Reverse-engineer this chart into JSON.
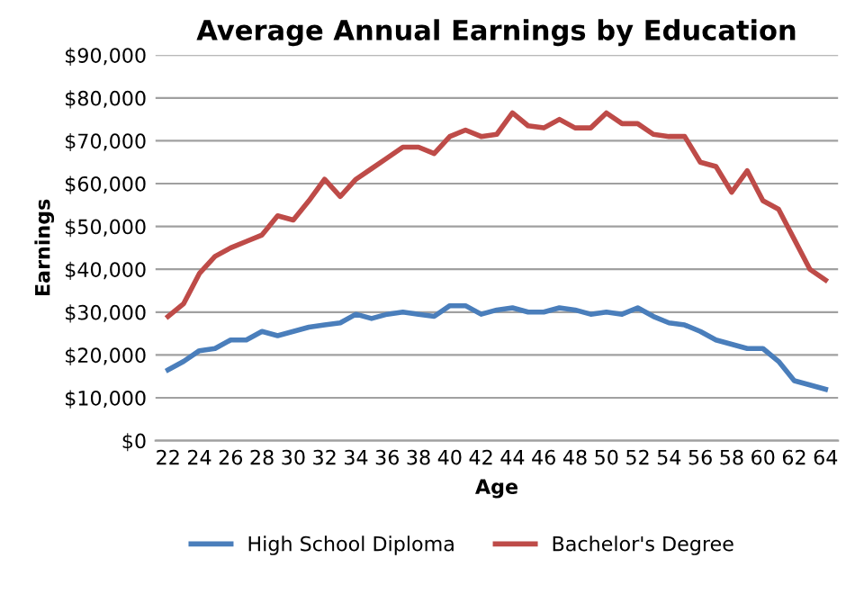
{
  "chart_data": {
    "type": "line",
    "title": "Average Annual Earnings by Education",
    "xlabel": "Age",
    "ylabel": "Earnings",
    "categories": [
      "22",
      null,
      "24",
      null,
      "26",
      null,
      "28",
      null,
      "30",
      null,
      "32",
      null,
      "34",
      null,
      "36",
      null,
      "38",
      null,
      "40",
      null,
      "42",
      null,
      "44",
      null,
      "46",
      null,
      "48",
      null,
      "50",
      null,
      "52",
      null,
      "54",
      null,
      "56",
      null,
      "58",
      null,
      "60",
      null,
      "62",
      null,
      "64"
    ],
    "series": [
      {
        "name": "High School Diploma",
        "color": "#4a7ebb",
        "values": [
          16500,
          18500,
          21000,
          21500,
          23500,
          23500,
          25500,
          24500,
          25500,
          26500,
          27000,
          27500,
          29500,
          28500,
          29500,
          30000,
          29500,
          29000,
          31500,
          31500,
          29500,
          30500,
          31000,
          30000,
          30000,
          31000,
          30500,
          29500,
          30000,
          29500,
          31000,
          29000,
          27500,
          27000,
          25500,
          23500,
          22500,
          21500,
          21500,
          18500,
          14000,
          13000,
          12000
        ]
      },
      {
        "name": "Bachelor's Degree",
        "color": "#be4b48",
        "values": [
          29000,
          32000,
          39000,
          43000,
          45000,
          46500,
          48000,
          52500,
          51500,
          56000,
          61000,
          57000,
          61000,
          63500,
          66000,
          68500,
          68500,
          67000,
          71000,
          72500,
          71000,
          71500,
          76500,
          73500,
          73000,
          75000,
          73000,
          73000,
          76500,
          74000,
          74000,
          71500,
          71000,
          71000,
          65000,
          64000,
          58000,
          63000,
          56000,
          54000,
          47000,
          40000,
          37500
        ]
      }
    ],
    "ylim": [
      0,
      90000
    ],
    "yticks": [
      {
        "value": 0,
        "label": "$0"
      },
      {
        "value": 10000,
        "label": "$10,000"
      },
      {
        "value": 20000,
        "label": "$20,000"
      },
      {
        "value": 30000,
        "label": "$30,000"
      },
      {
        "value": 40000,
        "label": "$40,000"
      },
      {
        "value": 50000,
        "label": "$50,000"
      },
      {
        "value": 60000,
        "label": "$60,000"
      },
      {
        "value": 70000,
        "label": "$70,000"
      },
      {
        "value": 80000,
        "label": "$80,000"
      },
      {
        "value": 90000,
        "label": "$90,000"
      }
    ],
    "grid": "y",
    "legend": "bottom",
    "marker": "none",
    "line_style": "solid"
  }
}
